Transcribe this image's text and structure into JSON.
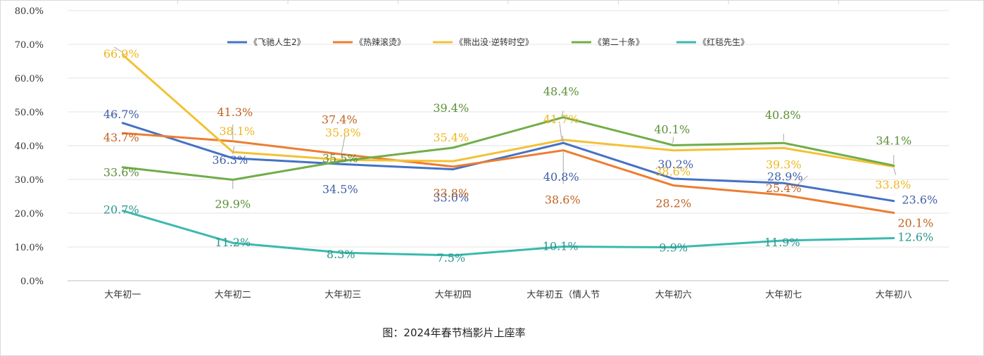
{
  "chart_data": {
    "type": "line",
    "title": "图：2024年春节档影片上座率",
    "xlabel": "",
    "ylabel": "",
    "ylim": [
      0,
      80
    ],
    "y_ticks": [
      "0.0%",
      "10.0%",
      "20.0%",
      "30.0%",
      "40.0%",
      "50.0%",
      "60.0%",
      "70.0%",
      "80.0%"
    ],
    "grid": true,
    "legend_position": "top",
    "categories": [
      "大年初一",
      "大年初二",
      "大年初三",
      "大年初四",
      "大年初五（情人节",
      "大年初六",
      "大年初七",
      "大年初八"
    ],
    "series": [
      {
        "name": "《飞驰人生2》",
        "color": "#4472C4",
        "label_color": "#3F5FA8",
        "values": [
          46.7,
          36.3,
          34.5,
          33.0,
          40.8,
          30.2,
          28.9,
          23.6
        ],
        "labels": [
          "46.7%",
          "36.3%",
          "34.5%",
          "33.0%",
          "40.8%",
          "30.2%",
          "28.9%",
          "23.6%"
        ]
      },
      {
        "name": "《热辣滚烫》",
        "color": "#ED7D31",
        "label_color": "#C0621F",
        "values": [
          43.7,
          41.3,
          37.4,
          33.8,
          38.6,
          28.2,
          25.4,
          20.1
        ],
        "labels": [
          "43.7%",
          "41.3%",
          "37.4%",
          "33.8%",
          "38.6%",
          "28.2%",
          "25.4%",
          "20.1%"
        ]
      },
      {
        "name": "《熊出没·逆转时空》",
        "color": "#F4C136",
        "label_color": "#EDB720",
        "values": [
          66.9,
          38.1,
          35.8,
          35.4,
          41.7,
          38.6,
          39.3,
          33.8
        ],
        "labels": [
          "66.9%",
          "38.1%",
          "35.8%",
          "35.4%",
          "41.7%",
          "38.6%",
          "39.3%",
          "33.8%"
        ]
      },
      {
        "name": "《第二十条》",
        "color": "#70AD47",
        "label_color": "#5A8F36",
        "values": [
          33.6,
          29.9,
          35.5,
          39.4,
          48.4,
          40.1,
          40.8,
          34.1
        ],
        "labels": [
          "33.6%",
          "29.9%",
          "35.5%",
          "39.4%",
          "48.4%",
          "40.1%",
          "40.8%",
          "34.1%"
        ]
      },
      {
        "name": "《红毯先生》",
        "color": "#3BB9AE",
        "label_color": "#2A968D",
        "values": [
          20.7,
          11.2,
          8.3,
          7.5,
          10.1,
          9.9,
          11.9,
          12.6
        ],
        "labels": [
          "20.7%",
          "11.2%",
          "8.3%",
          "7.5%",
          "10.1%",
          "9.9%",
          "11.9%",
          "12.6%"
        ]
      }
    ]
  }
}
